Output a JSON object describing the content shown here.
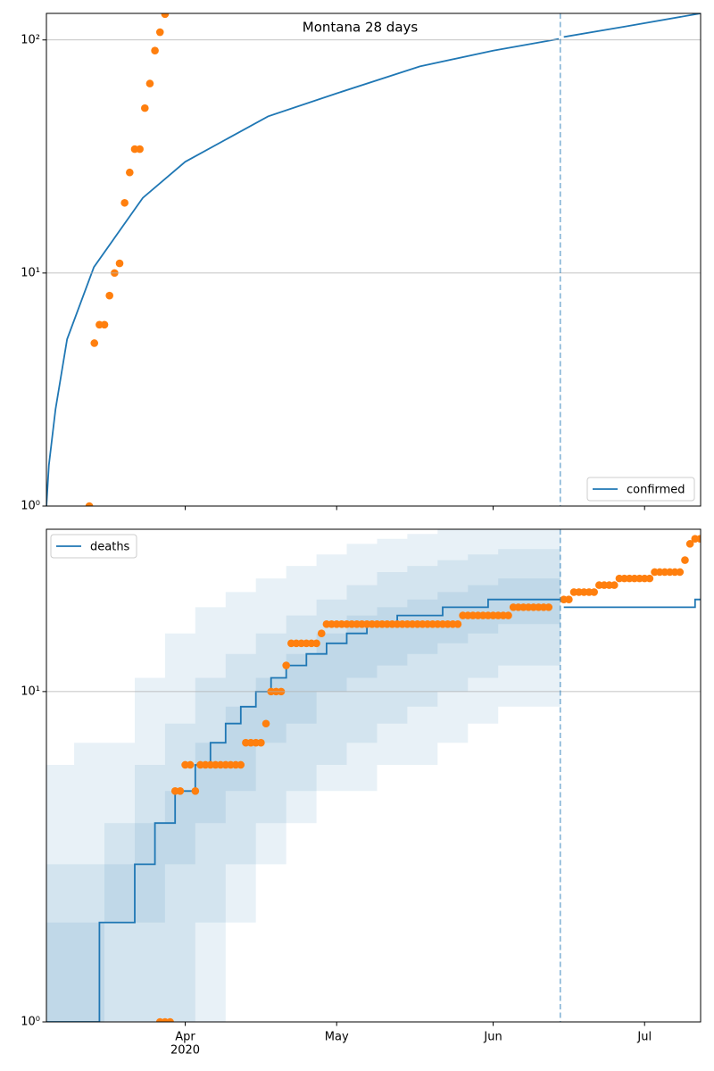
{
  "chart_data": [
    {
      "type": "line",
      "title": "Montana 28 days",
      "xlim": [
        63.5,
        193.1
      ],
      "xticks": [
        91,
        121,
        152,
        182
      ],
      "xtick_labels": false,
      "ylim": [
        1,
        130
      ],
      "log_y": true,
      "grid": true,
      "yticks": [
        {
          "value": 1,
          "label": "10⁰"
        },
        {
          "value": 10,
          "label": "10¹"
        },
        {
          "value": 100,
          "label": "10²"
        }
      ],
      "legend": "lower right",
      "vline": {
        "x": 165.3,
        "color": "#1f77b4"
      },
      "series": [
        {
          "name": "confirmed",
          "kind": "line",
          "color": "#1f77b4",
          "x": [
            63.5,
            64,
            65.3,
            67.6,
            72.9,
            82.6,
            91,
            107.4,
            121,
            137.5,
            152,
            165,
            null,
            166,
            178,
            193.1
          ],
          "values": [
            1,
            1.5,
            2.6,
            5.2,
            10.6,
            21,
            30,
            47,
            59,
            77,
            90,
            101,
            null,
            103,
            114,
            130
          ]
        },
        {
          "kind": "scatter",
          "color": "#ff7f0e",
          "x": [
            72,
            73,
            74,
            75,
            76,
            77,
            78,
            79,
            80,
            81,
            82,
            83,
            84,
            85,
            86,
            87
          ],
          "values": [
            1,
            5,
            6,
            6,
            8,
            10,
            11,
            20,
            27,
            34,
            34,
            51,
            65,
            90,
            108,
            129
          ]
        }
      ]
    },
    {
      "type": "line",
      "xlim": [
        63.5,
        193.1
      ],
      "xticks": [
        {
          "value": 91,
          "label": "Apr"
        },
        {
          "value": 121,
          "label": "May"
        },
        {
          "value": 152,
          "label": "Jun"
        },
        {
          "value": 182,
          "label": "Jul"
        }
      ],
      "xtick_labels": true,
      "year_label": "2020",
      "ylim": [
        1,
        31
      ],
      "log_y": true,
      "grid": true,
      "yticks": [
        {
          "value": 1,
          "label": "10⁰"
        },
        {
          "value": 10,
          "label": "10¹"
        }
      ],
      "legend": "upper left",
      "vline": {
        "x": 165.3,
        "color": "#1f77b4"
      },
      "band_x": [
        63.5,
        69,
        75,
        81,
        87,
        93,
        99,
        105,
        111,
        117,
        123,
        129,
        135,
        141,
        147,
        153,
        159,
        165.3
      ],
      "bands": [
        {
          "color": "#1f77b4",
          "opacity": 0.1,
          "upper": [
            6,
            7,
            7,
            11,
            15,
            18,
            20,
            22,
            24,
            26,
            28,
            29,
            30,
            31,
            31,
            31,
            31,
            31
          ],
          "lower": [
            1,
            1,
            1,
            1,
            1,
            1,
            2,
            3,
            4,
            5,
            5,
            6,
            6,
            7,
            8,
            9,
            9,
            9
          ]
        },
        {
          "color": "#1f77b4",
          "opacity": 0.1,
          "upper": [
            3,
            3,
            4,
            6,
            8,
            11,
            13,
            15,
            17,
            19,
            21,
            23,
            24,
            25,
            26,
            27,
            27,
            27
          ],
          "lower": [
            1,
            1,
            1,
            1,
            1,
            2,
            3,
            4,
            5,
            6,
            7,
            8,
            9,
            10,
            11,
            12,
            12,
            12
          ]
        },
        {
          "color": "#1f77b4",
          "opacity": 0.1,
          "upper": [
            2,
            2,
            3,
            4,
            5,
            7,
            9,
            11,
            13,
            15,
            17,
            18,
            19,
            20,
            21,
            22,
            22,
            22
          ],
          "lower": [
            1,
            1,
            2,
            2,
            3,
            4,
            5,
            7,
            8,
            10,
            11,
            12,
            13,
            14,
            15,
            16,
            16,
            16
          ]
        }
      ],
      "series": [
        {
          "name": "deaths",
          "kind": "line",
          "drawstyle": "steps-post",
          "color": "#1f77b4",
          "x": [
            63.5,
            74,
            81,
            85,
            89,
            93,
            96,
            99,
            102,
            105,
            108,
            111,
            115,
            119,
            123,
            127,
            133,
            142,
            151,
            165.3,
            null,
            166,
            192,
            193.1
          ],
          "values": [
            1,
            2,
            3,
            4,
            5,
            6,
            7,
            8,
            9,
            10,
            11,
            12,
            13,
            14,
            15,
            16,
            17,
            18,
            19,
            19,
            null,
            18,
            19,
            19
          ]
        },
        {
          "kind": "scatter",
          "color": "#ff7f0e",
          "x": [
            86,
            87,
            88,
            89,
            90,
            91,
            92,
            93,
            94,
            95,
            96,
            97,
            98,
            99,
            100,
            101,
            102,
            103,
            104,
            105,
            106,
            107,
            108,
            109,
            110,
            111,
            112,
            113,
            114,
            115,
            116,
            117,
            118,
            119,
            120,
            121,
            122,
            123,
            124,
            125,
            126,
            127,
            128,
            129,
            130,
            131,
            132,
            133,
            134,
            135,
            136,
            137,
            138,
            139,
            140,
            141,
            142,
            143,
            144,
            145,
            146,
            147,
            148,
            149,
            150,
            151,
            152,
            153,
            154,
            155,
            156,
            157,
            158,
            159,
            160,
            161,
            162,
            163,
            166,
            167,
            168,
            169,
            170,
            171,
            172,
            173,
            174,
            175,
            176,
            177,
            178,
            179,
            180,
            181,
            182,
            183,
            184,
            185,
            186,
            187,
            188,
            189,
            190,
            191,
            192,
            193
          ],
          "values": [
            1,
            1,
            1,
            5,
            5,
            6,
            6,
            5,
            6,
            6,
            6,
            6,
            6,
            6,
            6,
            6,
            6,
            7,
            7,
            7,
            7,
            8,
            10,
            10,
            10,
            12,
            14,
            14,
            14,
            14,
            14,
            14,
            15,
            16,
            16,
            16,
            16,
            16,
            16,
            16,
            16,
            16,
            16,
            16,
            16,
            16,
            16,
            16,
            16,
            16,
            16,
            16,
            16,
            16,
            16,
            16,
            16,
            16,
            16,
            16,
            17,
            17,
            17,
            17,
            17,
            17,
            17,
            17,
            17,
            17,
            18,
            18,
            18,
            18,
            18,
            18,
            18,
            18,
            19,
            19,
            20,
            20,
            20,
            20,
            20,
            21,
            21,
            21,
            21,
            22,
            22,
            22,
            22,
            22,
            22,
            22,
            23,
            23,
            23,
            23,
            23,
            23,
            25,
            28,
            29,
            29
          ]
        }
      ]
    }
  ]
}
